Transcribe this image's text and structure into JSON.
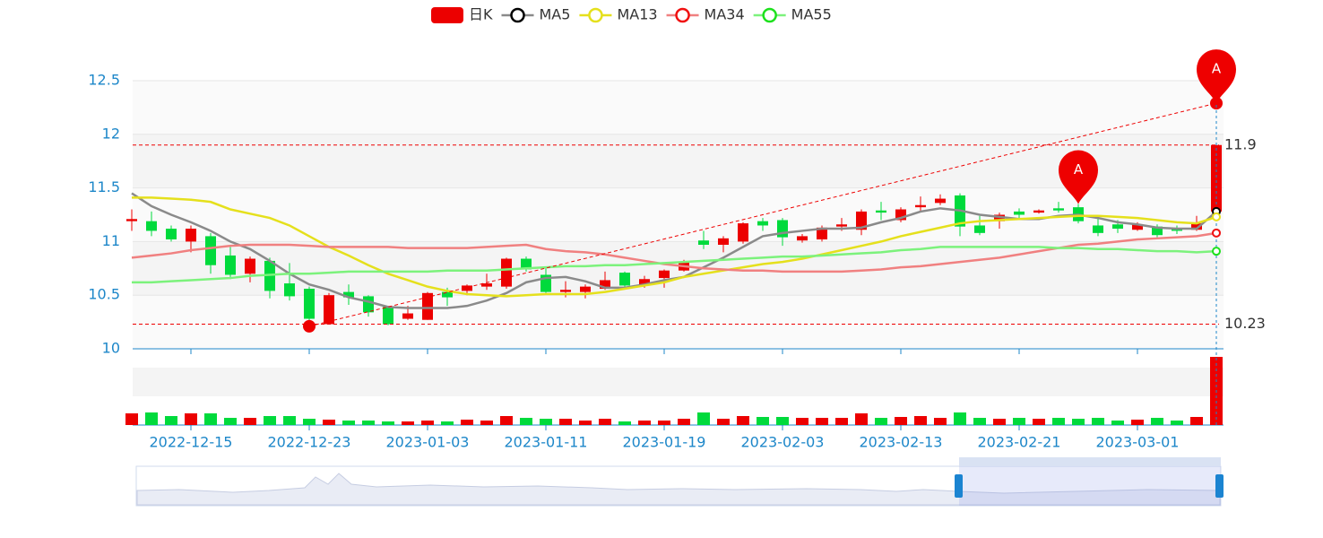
{
  "chart_data": {
    "type": "candlestick",
    "legend_position": "top",
    "ylim": [
      10,
      12.5
    ],
    "yticks": [
      10,
      10.5,
      11,
      11.5,
      12,
      12.5
    ],
    "categories": [
      null,
      null,
      null,
      "2022-12-15",
      null,
      null,
      null,
      null,
      null,
      "2022-12-23",
      null,
      null,
      null,
      null,
      null,
      "2023-01-03",
      null,
      null,
      null,
      null,
      null,
      "2023-01-11",
      null,
      null,
      null,
      null,
      null,
      "2023-01-19",
      null,
      null,
      null,
      null,
      null,
      "2023-02-03",
      null,
      null,
      null,
      null,
      null,
      "2023-02-13",
      null,
      null,
      null,
      null,
      null,
      "2023-02-21",
      null,
      null,
      null,
      null,
      null,
      "2023-03-01",
      null,
      null,
      null,
      null
    ],
    "series": [
      {
        "name": "日K",
        "up_color": "#ec0000",
        "down_color": "#00da3c",
        "values": [
          [
            11.19,
            11.21,
            11.1,
            11.3
          ],
          [
            11.19,
            11.1,
            11.05,
            11.28
          ],
          [
            11.12,
            11.02,
            11.0,
            11.15
          ],
          [
            11.0,
            11.12,
            10.9,
            11.15
          ],
          [
            11.05,
            10.78,
            10.7,
            11.08
          ],
          [
            10.87,
            10.69,
            10.65,
            10.95
          ],
          [
            10.7,
            10.84,
            10.62,
            10.86
          ],
          [
            10.82,
            10.54,
            10.47,
            10.85
          ],
          [
            10.61,
            10.49,
            10.45,
            10.8
          ],
          [
            10.56,
            10.28,
            10.21,
            10.58
          ],
          [
            10.23,
            10.5,
            10.23,
            10.52
          ],
          [
            10.53,
            10.48,
            10.41,
            10.6
          ],
          [
            10.49,
            10.34,
            10.3,
            10.5
          ],
          [
            10.39,
            10.23,
            10.22,
            10.4
          ],
          [
            10.28,
            10.33,
            10.27,
            10.4
          ],
          [
            10.27,
            10.52,
            10.27,
            10.53
          ],
          [
            10.53,
            10.48,
            10.4,
            10.57
          ],
          [
            10.54,
            10.59,
            10.5,
            10.6
          ],
          [
            10.58,
            10.61,
            10.55,
            10.7
          ],
          [
            10.58,
            10.84,
            10.56,
            10.85
          ],
          [
            10.84,
            10.74,
            10.72,
            10.86
          ],
          [
            10.69,
            10.53,
            10.52,
            10.75
          ],
          [
            10.53,
            10.55,
            10.48,
            10.63
          ],
          [
            10.53,
            10.58,
            10.47,
            10.6
          ],
          [
            10.56,
            10.64,
            10.55,
            10.72
          ],
          [
            10.71,
            10.59,
            10.57,
            10.72
          ],
          [
            10.59,
            10.65,
            10.57,
            10.68
          ],
          [
            10.66,
            10.73,
            10.57,
            10.74
          ],
          [
            10.73,
            10.81,
            10.72,
            10.83
          ],
          [
            11.01,
            10.97,
            10.93,
            11.1
          ],
          [
            10.97,
            11.03,
            10.9,
            11.05
          ],
          [
            11.0,
            11.17,
            10.98,
            11.18
          ],
          [
            11.19,
            11.15,
            11.1,
            11.22
          ],
          [
            11.2,
            11.04,
            10.96,
            11.22
          ],
          [
            11.01,
            11.05,
            10.99,
            11.07
          ],
          [
            11.02,
            11.13,
            11.0,
            11.15
          ],
          [
            11.14,
            11.16,
            11.1,
            11.22
          ],
          [
            11.11,
            11.28,
            11.06,
            11.3
          ],
          [
            11.29,
            11.27,
            11.2,
            11.37
          ],
          [
            11.2,
            11.3,
            11.18,
            11.32
          ],
          [
            11.32,
            11.34,
            11.28,
            11.42
          ],
          [
            11.36,
            11.4,
            11.34,
            11.44
          ],
          [
            11.43,
            11.14,
            11.05,
            11.45
          ],
          [
            11.15,
            11.08,
            11.06,
            11.24
          ],
          [
            11.19,
            11.25,
            11.12,
            11.27
          ],
          [
            11.28,
            11.25,
            11.22,
            11.31
          ],
          [
            11.27,
            11.29,
            11.26,
            11.3
          ],
          [
            11.31,
            11.29,
            11.27,
            11.37
          ],
          [
            11.32,
            11.19,
            11.17,
            11.35
          ],
          [
            11.15,
            11.08,
            11.05,
            11.22
          ],
          [
            11.16,
            11.12,
            11.08,
            11.2
          ],
          [
            11.11,
            11.16,
            11.1,
            11.18
          ],
          [
            11.14,
            11.06,
            11.04,
            11.16
          ],
          [
            11.12,
            11.1,
            11.07,
            11.15
          ],
          [
            11.11,
            11.17,
            11.1,
            11.24
          ],
          [
            11.28,
            11.9,
            11.27,
            11.9
          ]
        ]
      },
      {
        "name": "MA5",
        "color": "#8a8a8a",
        "values": [
          11.45,
          11.33,
          11.25,
          11.18,
          11.1,
          11.0,
          10.93,
          10.82,
          10.7,
          10.6,
          10.55,
          10.48,
          10.44,
          10.39,
          10.38,
          10.38,
          10.38,
          10.4,
          10.45,
          10.52,
          10.62,
          10.66,
          10.67,
          10.63,
          10.57,
          10.57,
          10.6,
          10.64,
          10.67,
          10.76,
          10.85,
          10.95,
          11.05,
          11.08,
          11.1,
          11.12,
          11.12,
          11.13,
          11.18,
          11.22,
          11.28,
          11.31,
          11.29,
          11.25,
          11.23,
          11.21,
          11.21,
          11.24,
          11.25,
          11.22,
          11.18,
          11.16,
          11.13,
          11.12,
          11.12,
          11.28
        ]
      },
      {
        "name": "MA13",
        "color": "#e5e01c",
        "values": [
          11.41,
          11.41,
          11.4,
          11.39,
          11.37,
          11.3,
          11.26,
          11.22,
          11.15,
          11.05,
          10.95,
          10.87,
          10.78,
          10.7,
          10.64,
          10.58,
          10.54,
          10.51,
          10.5,
          10.49,
          10.5,
          10.51,
          10.51,
          10.51,
          10.53,
          10.56,
          10.59,
          10.62,
          10.67,
          10.7,
          10.73,
          10.76,
          10.79,
          10.81,
          10.84,
          10.88,
          10.92,
          10.96,
          11.0,
          11.05,
          11.09,
          11.13,
          11.17,
          11.19,
          11.2,
          11.21,
          11.22,
          11.23,
          11.24,
          11.24,
          11.23,
          11.22,
          11.2,
          11.18,
          11.17,
          11.23
        ]
      },
      {
        "name": "MA34",
        "color": "#f08080",
        "values": [
          10.85,
          10.87,
          10.89,
          10.92,
          10.94,
          10.96,
          10.97,
          10.97,
          10.97,
          10.96,
          10.95,
          10.95,
          10.95,
          10.95,
          10.94,
          10.94,
          10.94,
          10.94,
          10.95,
          10.96,
          10.97,
          10.93,
          10.91,
          10.9,
          10.88,
          10.85,
          10.82,
          10.79,
          10.77,
          10.75,
          10.74,
          10.73,
          10.73,
          10.72,
          10.72,
          10.72,
          10.72,
          10.73,
          10.74,
          10.76,
          10.77,
          10.79,
          10.81,
          10.83,
          10.85,
          10.88,
          10.91,
          10.94,
          10.97,
          10.98,
          11.0,
          11.02,
          11.03,
          11.04,
          11.05,
          11.08
        ]
      },
      {
        "name": "MA55",
        "color": "#7cf27c",
        "values": [
          10.62,
          10.62,
          10.63,
          10.64,
          10.65,
          10.66,
          10.68,
          10.69,
          10.7,
          10.7,
          10.71,
          10.72,
          10.72,
          10.72,
          10.72,
          10.72,
          10.73,
          10.73,
          10.73,
          10.74,
          10.75,
          10.76,
          10.77,
          10.77,
          10.78,
          10.78,
          10.79,
          10.8,
          10.81,
          10.82,
          10.83,
          10.84,
          10.85,
          10.86,
          10.86,
          10.87,
          10.88,
          10.89,
          10.9,
          10.92,
          10.93,
          10.95,
          10.95,
          10.95,
          10.95,
          10.95,
          10.95,
          10.94,
          10.94,
          10.93,
          10.93,
          10.92,
          10.91,
          10.91,
          10.9,
          10.91
        ]
      }
    ],
    "legend_marker_colors": [
      "#ec0000",
      "#000000",
      "#e5e01c",
      "#f01010",
      "#1de11d"
    ],
    "volume": {
      "ylim": [
        0,
        64
      ],
      "values": [
        13,
        14,
        10,
        13,
        13,
        8,
        8,
        10,
        10,
        7,
        6,
        5,
        5,
        4,
        4,
        5,
        4,
        6,
        5,
        10,
        8,
        7,
        7,
        5,
        7,
        4,
        5,
        5,
        7,
        14,
        7,
        10,
        9,
        9,
        8,
        8,
        8,
        13,
        8,
        9,
        10,
        8,
        14,
        8,
        7,
        8,
        7,
        8,
        7,
        8,
        5,
        6,
        8,
        5,
        9,
        76
      ]
    },
    "mark_lines": [
      11.9,
      10.23
    ],
    "trend_line": {
      "start": {
        "category_index": 9,
        "value": 10.21
      },
      "end": {
        "category_index": 55,
        "value": 12.29
      }
    },
    "mark_points": [
      {
        "name": "A",
        "category_index": 48,
        "value": 11.35
      },
      {
        "name": "A",
        "category_index": 55,
        "value": 12.29
      }
    ]
  }
}
